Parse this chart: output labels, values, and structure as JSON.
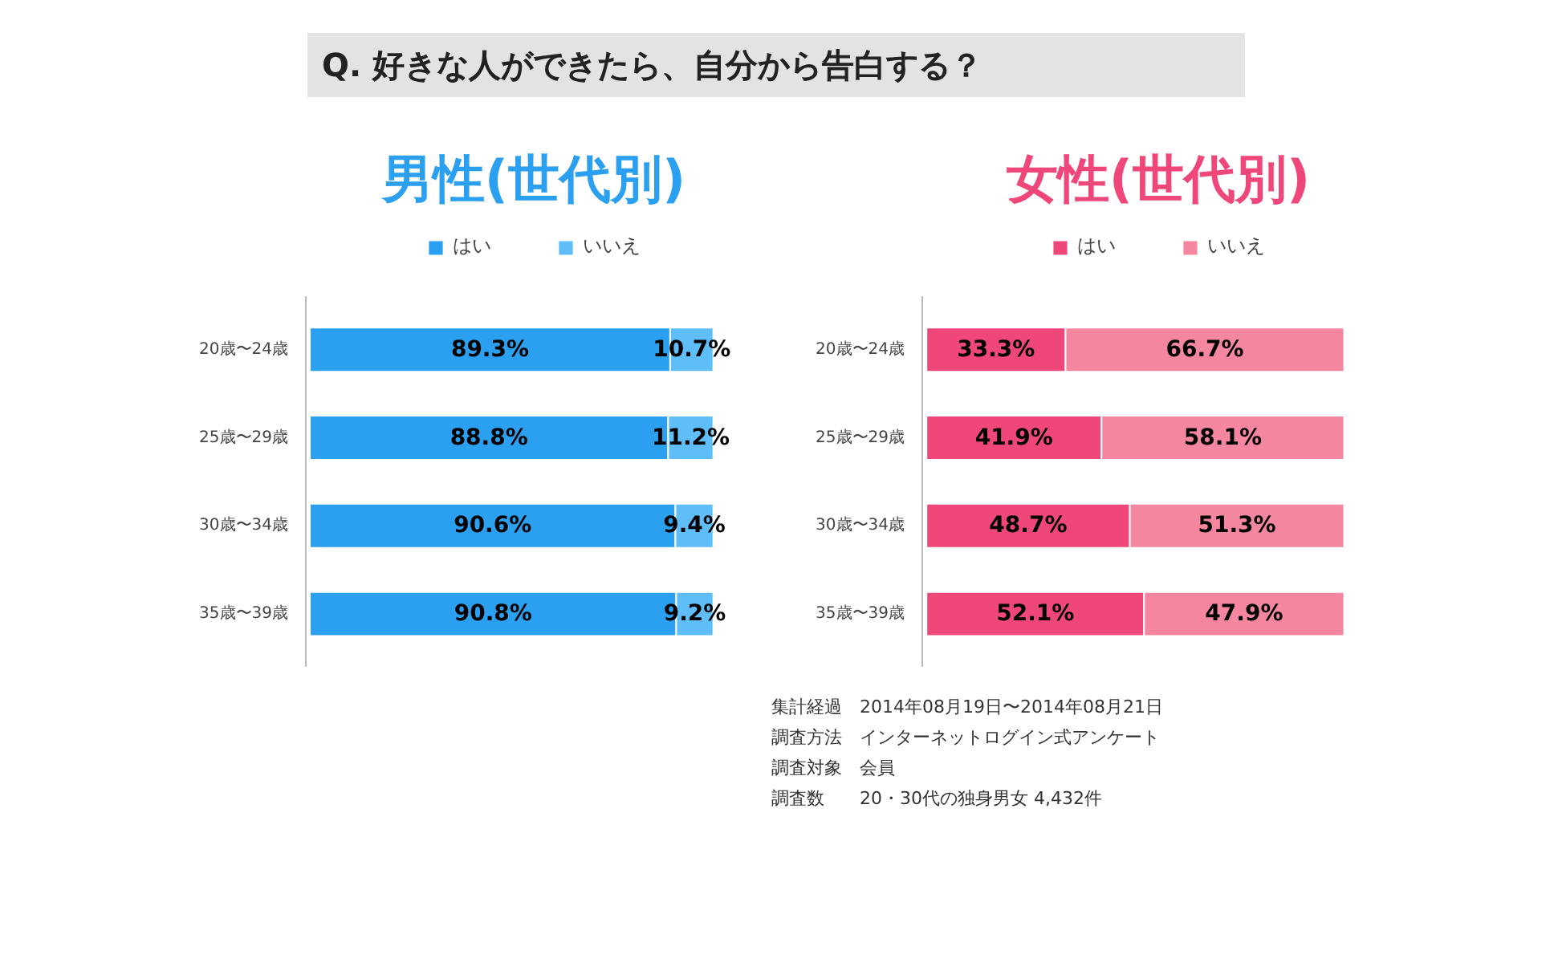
{
  "chart_data": [
    {
      "type": "other",
      "title": "Q. 好きな人ができたら、自分から告白する？"
    },
    {
      "type": "bar",
      "orientation": "horizontal",
      "stacked": true,
      "title": "男性(世代別)",
      "categories": [
        "20歳〜24歳",
        "25歳〜29歳",
        "30歳〜34歳",
        "35歳〜39歳"
      ],
      "legend": "top",
      "series": [
        {
          "name": "はい",
          "color": "#2b9ff0",
          "values": [
            89.3,
            88.8,
            90.6,
            90.8
          ],
          "value_labels": [
            "89.3%",
            "88.8%",
            "90.6%",
            "90.8%"
          ]
        },
        {
          "name": "いいえ",
          "color": "#5fbdf7",
          "values": [
            10.7,
            11.2,
            9.4,
            9.2
          ],
          "value_labels": [
            "10.7%",
            "11.2%",
            "9.4%",
            "9.2%"
          ]
        }
      ]
    },
    {
      "type": "bar",
      "orientation": "horizontal",
      "stacked": true,
      "title": "女性(世代別)",
      "categories": [
        "20歳〜24歳",
        "25歳〜29歳",
        "30歳〜34歳",
        "35歳〜39歳"
      ],
      "legend": "top",
      "series": [
        {
          "name": "はい",
          "color": "#f0477a",
          "values": [
            33.3,
            41.9,
            48.7,
            52.1
          ],
          "value_labels": [
            "33.3%",
            "41.9%",
            "48.7%",
            "52.1%"
          ]
        },
        {
          "name": "いいえ",
          "color": "#f5869f",
          "values": [
            66.7,
            58.1,
            51.3,
            47.9
          ],
          "value_labels": [
            "66.7%",
            "58.1%",
            "51.3%",
            "47.9%"
          ]
        }
      ]
    },
    {
      "type": "other",
      "annotations": [
        "集計経過　2014年08月19日〜2014年08月21日",
        "調査方法　インターネットログイン式アンケート",
        "調査対象　会員",
        "調査数　　20・30代の独身男女 4,432件"
      ]
    }
  ]
}
